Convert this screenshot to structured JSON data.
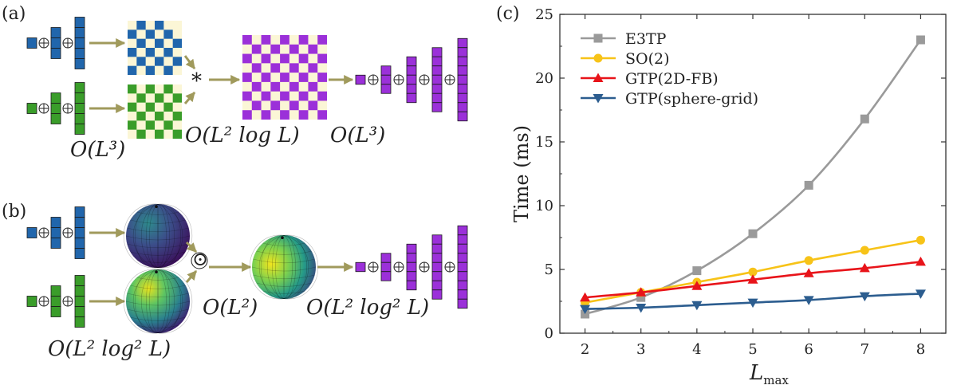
{
  "panel_labels": {
    "a": "(a)",
    "b": "(b)",
    "c": "(c)"
  },
  "panel_a": {
    "complexity_left": "O(L³)",
    "complexity_mid": "O(L² log L)",
    "complexity_right": "O(L³)",
    "operator": "*"
  },
  "panel_b": {
    "complexity_left": "O(L² log² L)",
    "complexity_mid": "O(L²)",
    "complexity_right": "O(L² log² L)",
    "operator": "⊙"
  },
  "colors": {
    "blue": "#2166ac",
    "green": "#3a9d2a",
    "purple": "#9b30d9",
    "cream": "#fbf6d6",
    "arrow": "#a09a5c"
  },
  "chart_data": {
    "type": "line",
    "xlabel": "L",
    "xlabel_sub": "max",
    "ylabel": "Time (ms)",
    "x": [
      2,
      3,
      4,
      5,
      6,
      7,
      8
    ],
    "xlim": [
      1.55,
      8.45
    ],
    "ylim": [
      0,
      25
    ],
    "xticks": [
      2,
      3,
      4,
      5,
      6,
      7,
      8
    ],
    "yticks": [
      0,
      5,
      10,
      15,
      20,
      25
    ],
    "legend_position": "top-left",
    "series": [
      {
        "name": "E3TP",
        "color": "#9a9a9a",
        "marker": "square",
        "values": [
          1.5,
          2.8,
          4.9,
          7.8,
          11.6,
          16.8,
          23.0
        ]
      },
      {
        "name": "SO(2)",
        "color": "#f7c318",
        "marker": "circle",
        "values": [
          2.4,
          3.2,
          4.0,
          4.8,
          5.7,
          6.5,
          7.3
        ]
      },
      {
        "name": "GTP(2D-FB)",
        "color": "#e8141a",
        "marker": "triangle-up",
        "values": [
          2.8,
          3.2,
          3.7,
          4.2,
          4.7,
          5.1,
          5.6
        ]
      },
      {
        "name": "GTP(sphere-grid)",
        "color": "#2c5d8f",
        "marker": "triangle-down",
        "values": [
          1.9,
          2.0,
          2.2,
          2.4,
          2.6,
          2.9,
          3.1
        ]
      }
    ]
  }
}
